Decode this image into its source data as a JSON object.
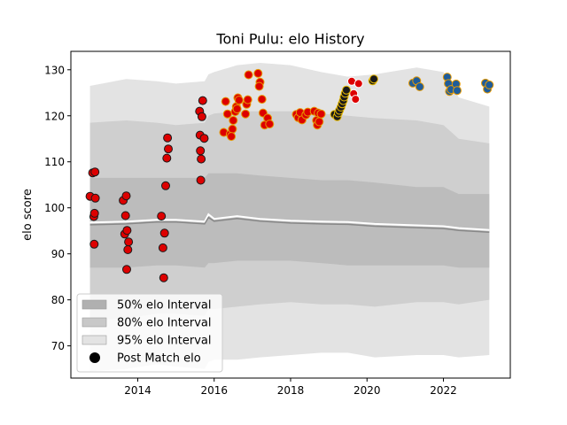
{
  "chart_data": {
    "type": "scatter",
    "title": "Toni Pulu: elo History",
    "xlabel": "",
    "ylabel": "elo score",
    "xlim": [
      2012.25,
      2023.75
    ],
    "ylim": [
      63,
      134
    ],
    "xticks": [
      2014,
      2016,
      2018,
      2020,
      2022
    ],
    "yticks": [
      70,
      80,
      90,
      100,
      110,
      120,
      130
    ],
    "grid": false,
    "legend_position": "lower-left",
    "legend": [
      {
        "label": "50% elo Interval",
        "kind": "band",
        "color": "#b0b0b0"
      },
      {
        "label": "80% elo Interval",
        "kind": "band",
        "color": "#c8c8c8"
      },
      {
        "label": "95% elo Interval",
        "kind": "band",
        "color": "#e3e3e3"
      },
      {
        "label": "Post Match elo",
        "kind": "marker",
        "color": "#000000"
      }
    ],
    "bands": {
      "x": [
        2012.75,
        2013.7,
        2014.5,
        2015.0,
        2015.75,
        2015.85,
        2016.0,
        2016.6,
        2017.2,
        2018.0,
        2018.8,
        2019.5,
        2020.2,
        2021.3,
        2022.0,
        2022.4,
        2023.2
      ],
      "lo95": [
        64.5,
        65.0,
        66.0,
        65.5,
        65.0,
        66.5,
        67.0,
        67.0,
        67.5,
        68.0,
        68.5,
        68.5,
        67.5,
        68.0,
        68.0,
        67.5,
        68.0
      ],
      "hi95": [
        126.5,
        128.0,
        127.5,
        127.0,
        127.5,
        129.0,
        129.5,
        131.0,
        131.5,
        131.0,
        129.5,
        128.5,
        129.0,
        130.5,
        129.5,
        124.0,
        122.0
      ],
      "lo80": [
        75.5,
        76.0,
        77.0,
        77.0,
        76.5,
        78.0,
        78.0,
        78.5,
        79.0,
        79.5,
        79.0,
        79.0,
        78.5,
        79.5,
        79.5,
        79.0,
        80.0
      ],
      "hi80": [
        118.5,
        119.0,
        118.5,
        118.0,
        118.5,
        120.0,
        120.5,
        121.0,
        121.0,
        121.0,
        120.5,
        120.0,
        119.5,
        119.0,
        118.0,
        115.0,
        114.0
      ],
      "lo50": [
        87.0,
        87.0,
        87.5,
        87.5,
        87.0,
        88.0,
        88.0,
        88.5,
        88.5,
        88.5,
        88.0,
        87.5,
        87.5,
        87.5,
        87.5,
        87.0,
        87.0
      ],
      "hi50": [
        106.5,
        106.5,
        106.5,
        106.5,
        106.5,
        107.5,
        107.5,
        107.5,
        107.0,
        106.5,
        106.0,
        106.0,
        105.5,
        104.5,
        104.5,
        103.0,
        103.0
      ]
    },
    "median": {
      "x": [
        2012.75,
        2013.7,
        2014.5,
        2015.0,
        2015.75,
        2015.85,
        2016.0,
        2016.6,
        2017.2,
        2018.0,
        2018.8,
        2019.5,
        2020.2,
        2021.3,
        2022.0,
        2022.4,
        2023.2
      ],
      "y": [
        96.8,
        97.0,
        97.4,
        97.4,
        97.0,
        98.6,
        97.6,
        98.2,
        97.6,
        97.2,
        97.0,
        96.9,
        96.5,
        96.2,
        96.0,
        95.6,
        95.2
      ],
      "y_offset": [
        96.3,
        96.5,
        96.9,
        96.9,
        96.5,
        97.9,
        97.1,
        97.7,
        97.1,
        96.7,
        96.5,
        96.4,
        96.0,
        95.7,
        95.5,
        95.1,
        94.7
      ]
    },
    "series": [
      {
        "fill": "#dd0000",
        "edge": "#1a1a1a",
        "points": [
          [
            2012.75,
            102.5
          ],
          [
            2012.82,
            107.6
          ],
          [
            2012.88,
            107.8
          ],
          [
            2012.85,
            98.1
          ],
          [
            2012.87,
            98.8
          ],
          [
            2012.89,
            102.1
          ],
          [
            2012.86,
            92.1
          ],
          [
            2013.62,
            101.6
          ],
          [
            2013.7,
            102.6
          ],
          [
            2013.68,
            98.3
          ],
          [
            2013.66,
            94.3
          ],
          [
            2013.72,
            95.1
          ],
          [
            2013.76,
            92.6
          ],
          [
            2013.74,
            90.9
          ],
          [
            2013.71,
            86.6
          ],
          [
            2014.62,
            98.2
          ],
          [
            2014.66,
            91.3
          ],
          [
            2014.7,
            94.5
          ],
          [
            2014.68,
            84.8
          ],
          [
            2014.73,
            104.8
          ],
          [
            2014.76,
            110.8
          ],
          [
            2014.78,
            115.2
          ],
          [
            2014.8,
            112.8
          ],
          [
            2015.62,
            121.0
          ],
          [
            2015.68,
            119.8
          ],
          [
            2015.7,
            123.3
          ],
          [
            2015.64,
            112.4
          ],
          [
            2015.66,
            110.6
          ],
          [
            2015.63,
            115.8
          ],
          [
            2015.74,
            115.1
          ],
          [
            2015.65,
            106.0
          ]
        ]
      },
      {
        "fill": "#dd0000",
        "edge": "#e69900",
        "points": [
          [
            2016.25,
            116.4
          ],
          [
            2016.35,
            120.4
          ],
          [
            2016.3,
            123.1
          ],
          [
            2016.42,
            116.0
          ],
          [
            2016.48,
            117.1
          ],
          [
            2016.45,
            115.5
          ],
          [
            2016.55,
            120.9
          ],
          [
            2016.58,
            122.0
          ],
          [
            2016.62,
            123.9
          ],
          [
            2016.65,
            123.4
          ],
          [
            2016.6,
            121.5
          ],
          [
            2016.5,
            119.0
          ],
          [
            2016.85,
            122.5
          ],
          [
            2016.88,
            123.5
          ],
          [
            2016.82,
            120.4
          ],
          [
            2016.9,
            128.9
          ],
          [
            2017.15,
            129.2
          ],
          [
            2017.2,
            127.3
          ],
          [
            2017.18,
            126.4
          ],
          [
            2017.25,
            123.6
          ],
          [
            2017.28,
            120.6
          ],
          [
            2017.32,
            118.0
          ],
          [
            2017.4,
            119.5
          ],
          [
            2017.45,
            118.2
          ],
          [
            2018.15,
            120.3
          ],
          [
            2018.2,
            119.6
          ],
          [
            2018.25,
            120.7
          ],
          [
            2018.3,
            119.1
          ],
          [
            2018.4,
            120.2
          ],
          [
            2018.45,
            120.8
          ],
          [
            2018.62,
            121.0
          ],
          [
            2018.68,
            119.0
          ],
          [
            2018.72,
            120.6
          ],
          [
            2018.7,
            118.0
          ],
          [
            2018.75,
            118.7
          ],
          [
            2018.8,
            120.4
          ]
        ]
      },
      {
        "fill": "#dd0000",
        "edge": "#ffffff",
        "points": [
          [
            2019.6,
            127.5
          ],
          [
            2019.65,
            124.8
          ],
          [
            2019.7,
            123.6
          ],
          [
            2019.78,
            127.0
          ]
        ]
      },
      {
        "fill": "#1a1a1a",
        "edge": "#e6b800",
        "points": [
          [
            2019.15,
            120.3
          ],
          [
            2019.22,
            119.8
          ],
          [
            2019.25,
            120.6
          ],
          [
            2019.28,
            121.2
          ],
          [
            2019.32,
            121.9
          ],
          [
            2019.35,
            122.6
          ],
          [
            2019.38,
            123.3
          ],
          [
            2019.4,
            124.1
          ],
          [
            2019.43,
            124.9
          ],
          [
            2019.46,
            125.6
          ],
          [
            2020.15,
            127.6
          ],
          [
            2020.18,
            128.0
          ]
        ]
      },
      {
        "fill": "#1f5c99",
        "edge": "#e69900",
        "points": [
          [
            2021.2,
            127.1
          ],
          [
            2021.3,
            127.6
          ],
          [
            2021.38,
            126.3
          ],
          [
            2022.1,
            128.4
          ],
          [
            2022.13,
            127.0
          ],
          [
            2022.16,
            125.3
          ],
          [
            2022.2,
            125.7
          ],
          [
            2022.33,
            126.9
          ],
          [
            2022.36,
            125.5
          ],
          [
            2023.1,
            127.1
          ],
          [
            2023.15,
            125.8
          ],
          [
            2023.2,
            126.7
          ]
        ]
      }
    ]
  }
}
